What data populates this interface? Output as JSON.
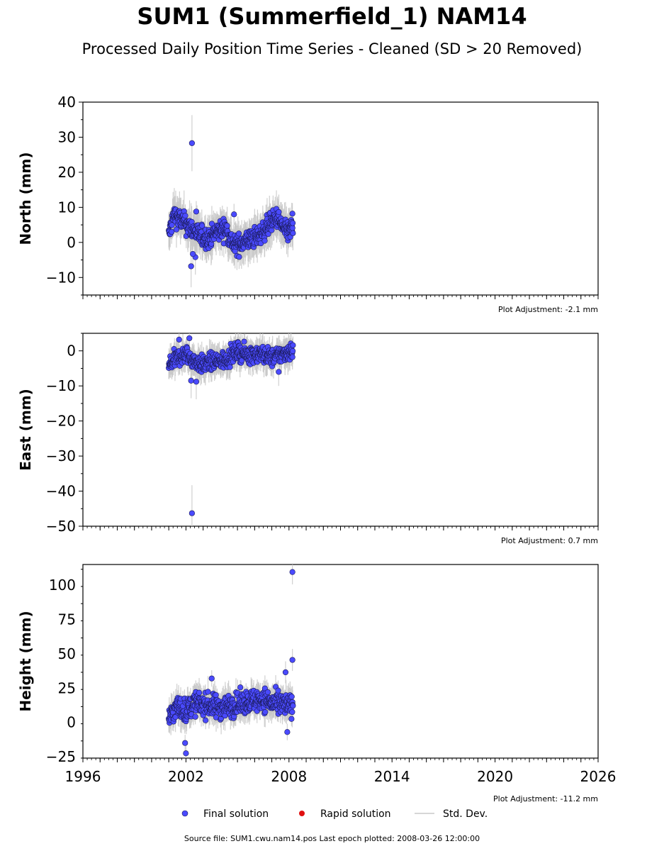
{
  "title": "SUM1 (Summerfield_1) NAM14",
  "subtitle": "Processed Daily Position Time Series - Cleaned (SD > 20 Removed)",
  "source_note": "Source file: SUM1.cwu.nam14.pos  Last epoch plotted: 2008-03-26 12:00:00",
  "colors": {
    "final_solution": "#4a4aff",
    "final_edge": "#1a1a55",
    "rapid_solution": "#e01010",
    "std_dev": "#c8c8c8"
  },
  "legend": {
    "final": "Final solution",
    "rapid": "Rapid solution",
    "std": "Std. Dev."
  },
  "chart_data": [
    {
      "type": "scatter",
      "ylabel": "North (mm)",
      "xlim": [
        1996,
        2026
      ],
      "ylim": [
        -15,
        40
      ],
      "yticks": [
        -10,
        0,
        10,
        20,
        30,
        40
      ],
      "xticks": [],
      "adjustment": "Plot Adjustment: -2.1 mm",
      "data_range": [
        2001.0,
        2008.23
      ],
      "trend": [
        [
          2001.0,
          2
        ],
        [
          2001.3,
          8
        ],
        [
          2001.8,
          6
        ],
        [
          2002.3,
          4
        ],
        [
          2002.8,
          2
        ],
        [
          2003.3,
          1
        ],
        [
          2003.8,
          3
        ],
        [
          2004.3,
          4
        ],
        [
          2004.8,
          -1
        ],
        [
          2005.3,
          0
        ],
        [
          2005.8,
          1
        ],
        [
          2006.3,
          2
        ],
        [
          2006.8,
          5
        ],
        [
          2007.3,
          7
        ],
        [
          2007.8,
          3
        ],
        [
          2008.23,
          4
        ]
      ],
      "scatter_amp": 3.5,
      "err": 4,
      "outliers": [
        {
          "x": 2002.35,
          "y": 28.3,
          "err": 8
        },
        {
          "x": 2002.3,
          "y": -6.8,
          "err": 6
        },
        {
          "x": 2002.55,
          "y": -4.2,
          "err": 5
        },
        {
          "x": 2002.4,
          "y": -3.3,
          "err": 4
        },
        {
          "x": 2002.6,
          "y": 8.8,
          "err": 3
        },
        {
          "x": 2004.8,
          "y": 8.0,
          "err": 3
        },
        {
          "x": 2008.2,
          "y": 8.2,
          "err": 3
        }
      ]
    },
    {
      "type": "scatter",
      "ylabel": "East (mm)",
      "xlim": [
        1996,
        2026
      ],
      "ylim": [
        -50,
        5
      ],
      "yticks": [
        -50,
        -40,
        -30,
        -20,
        -10,
        0
      ],
      "xticks": [],
      "adjustment": "Plot Adjustment: 0.7 mm",
      "data_range": [
        2001.0,
        2008.23
      ],
      "trend": [
        [
          2001.0,
          -4
        ],
        [
          2001.5,
          -2
        ],
        [
          2002.0,
          -1
        ],
        [
          2002.5,
          -3
        ],
        [
          2003.0,
          -4
        ],
        [
          2003.5,
          -3
        ],
        [
          2004.0,
          -3
        ],
        [
          2004.5,
          -2
        ],
        [
          2005.0,
          0
        ],
        [
          2005.5,
          -1
        ],
        [
          2006.0,
          -1
        ],
        [
          2006.5,
          -1
        ],
        [
          2007.0,
          -2
        ],
        [
          2007.5,
          -1
        ],
        [
          2008.23,
          0
        ]
      ],
      "scatter_amp": 3,
      "err": 3,
      "outliers": [
        {
          "x": 2002.35,
          "y": -46.3,
          "err": 8
        },
        {
          "x": 2002.3,
          "y": -8.5,
          "err": 5
        },
        {
          "x": 2002.6,
          "y": -8.8,
          "err": 5
        },
        {
          "x": 2002.2,
          "y": 3.6,
          "err": 2
        },
        {
          "x": 2001.6,
          "y": 3.2,
          "err": 2
        },
        {
          "x": 2007.4,
          "y": -6.0,
          "err": 4
        }
      ]
    },
    {
      "type": "scatter",
      "ylabel": "Height (mm)",
      "xlim": [
        1996,
        2026
      ],
      "ylim": [
        -26,
        115
      ],
      "yticks": [
        -25,
        0,
        25,
        50,
        75,
        100
      ],
      "xticks": [
        1996,
        2002,
        2008,
        2014,
        2020,
        2026
      ],
      "adjustment": "Plot Adjustment: -11.2 mm",
      "data_range": [
        2001.0,
        2008.23
      ],
      "trend": [
        [
          2001.0,
          3
        ],
        [
          2001.5,
          12
        ],
        [
          2002.0,
          8
        ],
        [
          2002.5,
          14
        ],
        [
          2003.0,
          13
        ],
        [
          2003.5,
          12
        ],
        [
          2004.0,
          11
        ],
        [
          2004.5,
          12
        ],
        [
          2005.0,
          13
        ],
        [
          2005.5,
          15
        ],
        [
          2006.0,
          16
        ],
        [
          2006.5,
          17
        ],
        [
          2007.0,
          14
        ],
        [
          2007.5,
          13
        ],
        [
          2008.23,
          12
        ]
      ],
      "scatter_amp": 10,
      "err": 8,
      "outliers": [
        {
          "x": 2008.2,
          "y": 109.5,
          "err": 9
        },
        {
          "x": 2008.2,
          "y": 45.5,
          "err": 8
        },
        {
          "x": 2007.8,
          "y": 36.5,
          "err": 8
        },
        {
          "x": 2002.0,
          "y": -22.5,
          "err": 6
        },
        {
          "x": 2001.95,
          "y": -15.0,
          "err": 6
        },
        {
          "x": 2003.5,
          "y": 32.0,
          "err": 6
        },
        {
          "x": 2007.9,
          "y": -7.0,
          "err": 6
        }
      ]
    }
  ]
}
